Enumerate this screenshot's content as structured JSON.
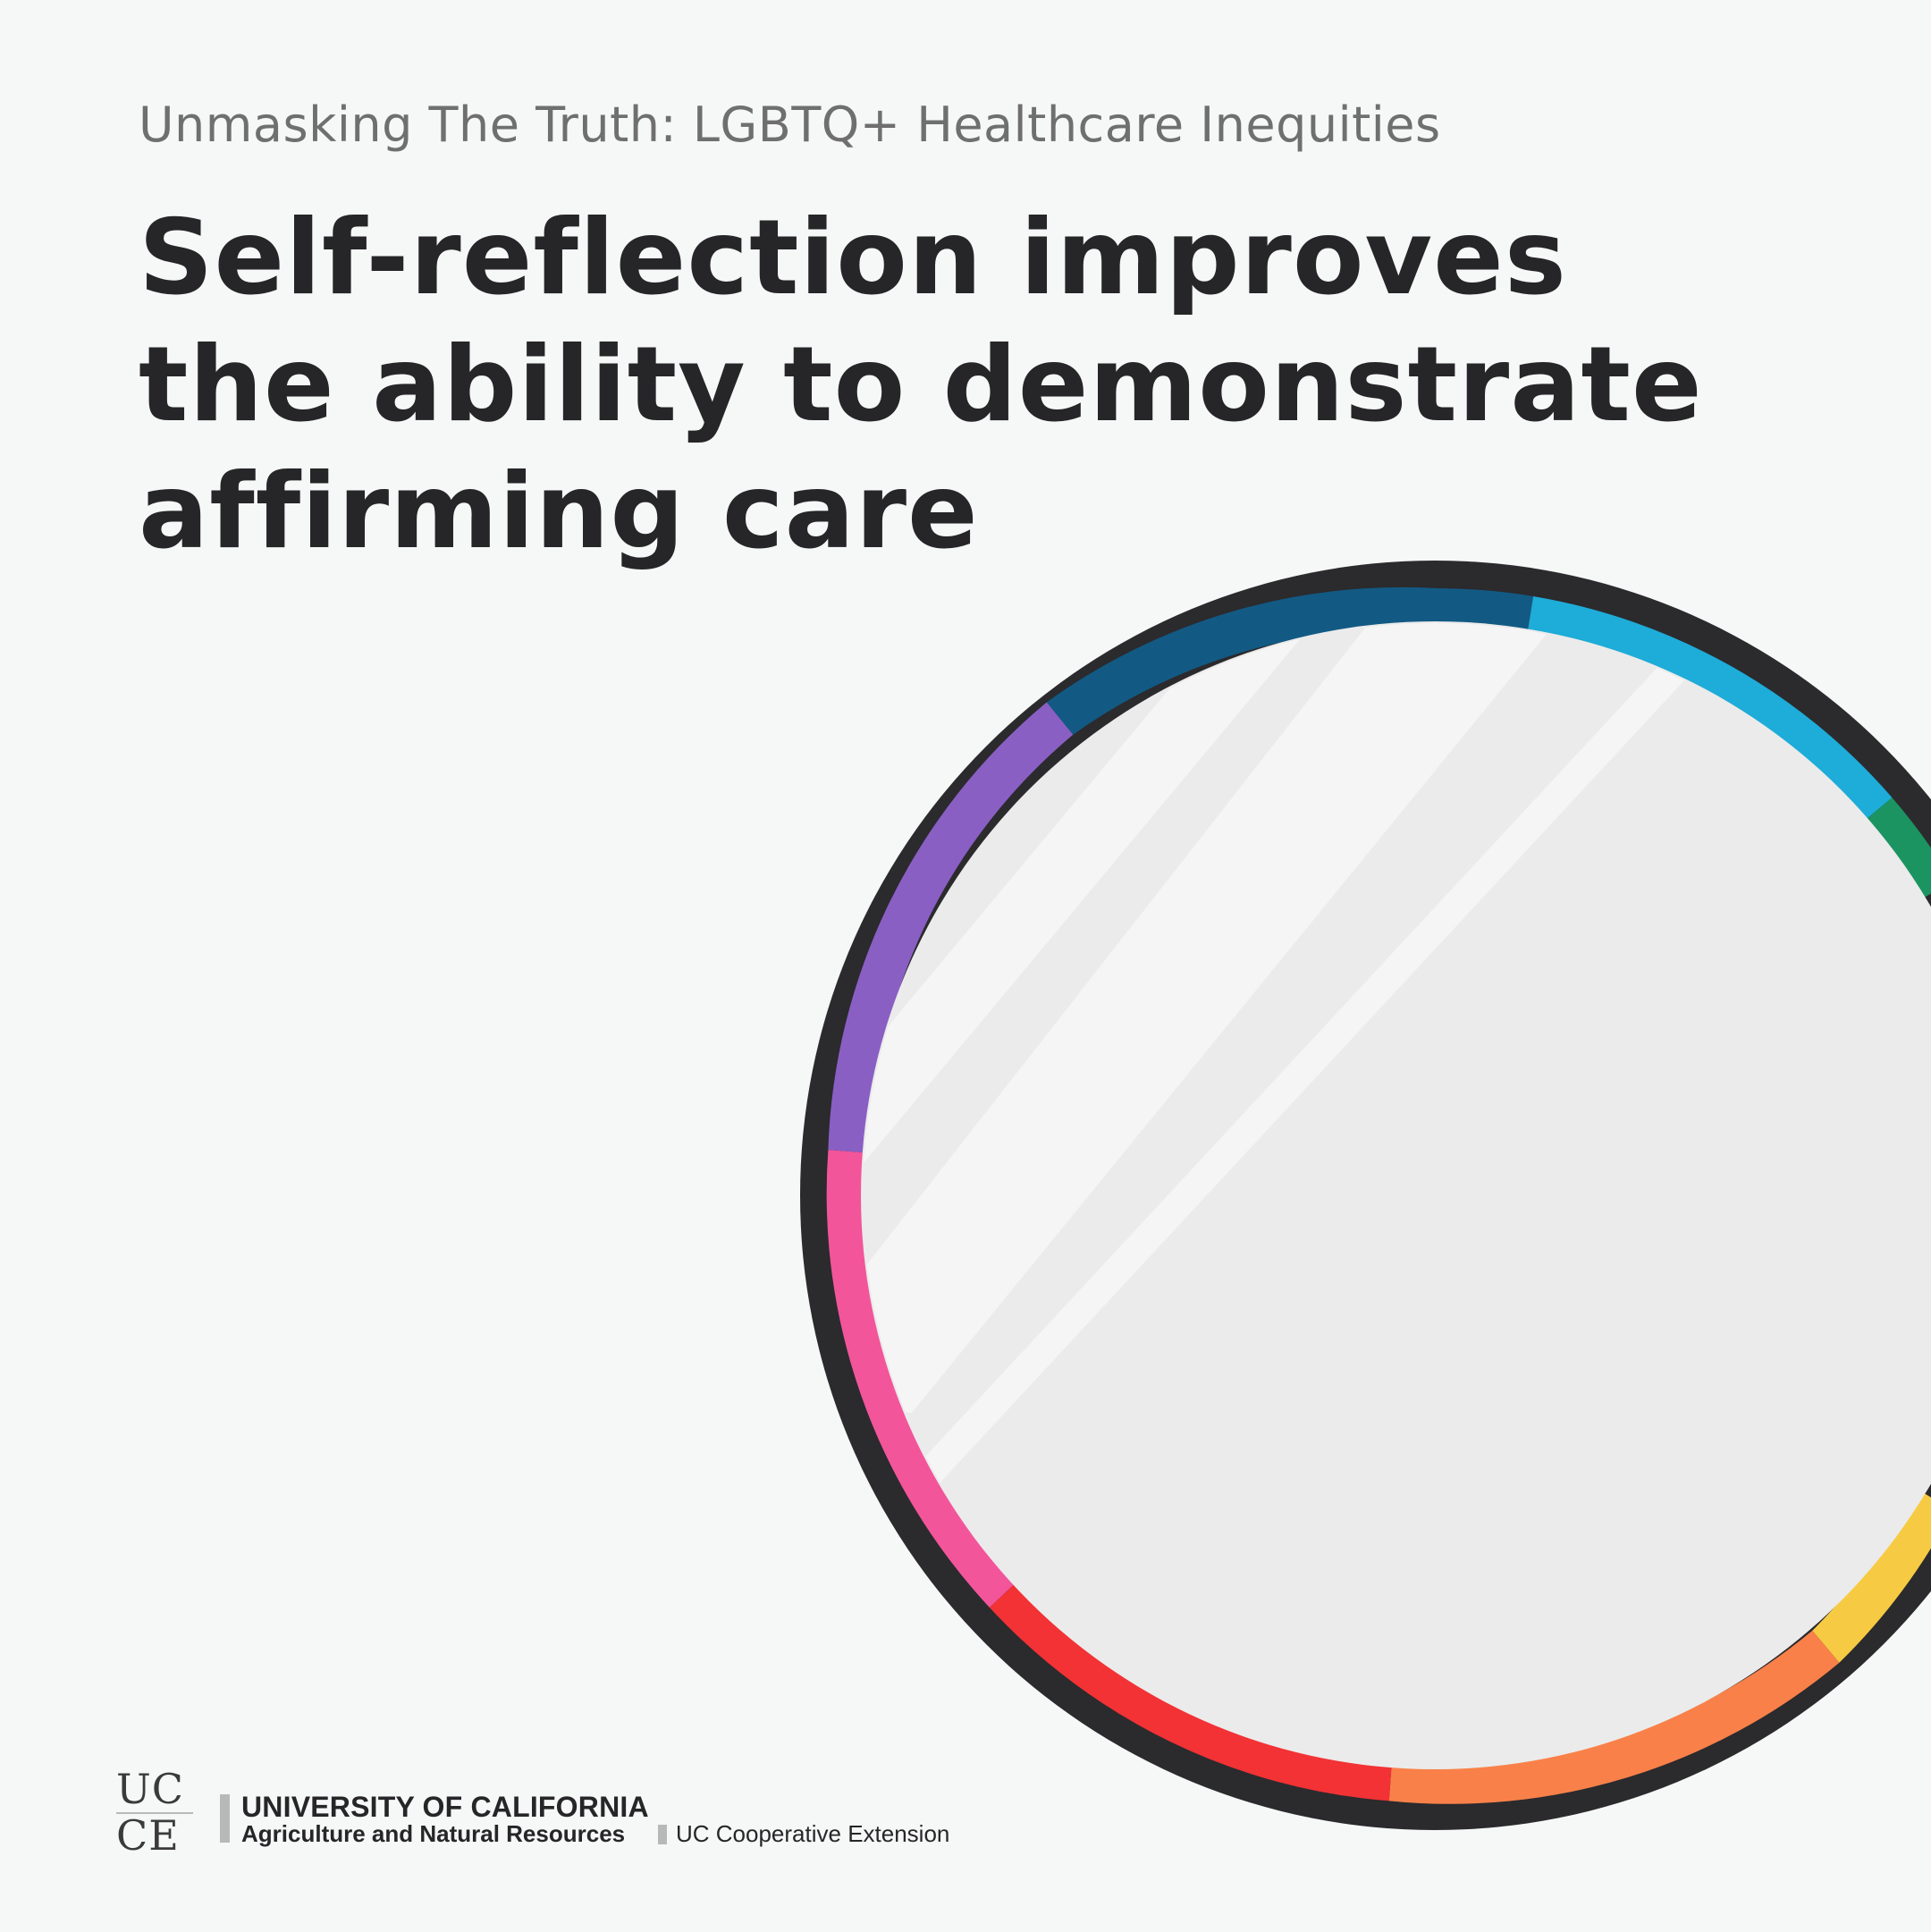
{
  "header": {
    "subtitle": "Unmasking The Truth: LGBTQ+ Healthcare Inequities",
    "headline_lines": [
      "Self-reflection improves",
      "the ability to demonstrate",
      "affirming care"
    ]
  },
  "illustration": {
    "frame_color": "#2b2a2d",
    "glass_color": "#ebebeb",
    "glare_color": "#f5f5f5",
    "ring_colors": [
      "#125a84",
      "#1eacd8",
      "#1b9462",
      "#f6cb43",
      "#f98149",
      "#f23235",
      "#f2559a",
      "#8a5fc4"
    ]
  },
  "footer": {
    "logo_line1": "UC",
    "logo_line2": "CE",
    "org_name": "UNIVERSITY OF CALIFORNIA",
    "org_division": "Agriculture and Natural Resources",
    "program": "UC Cooperative Extension"
  }
}
